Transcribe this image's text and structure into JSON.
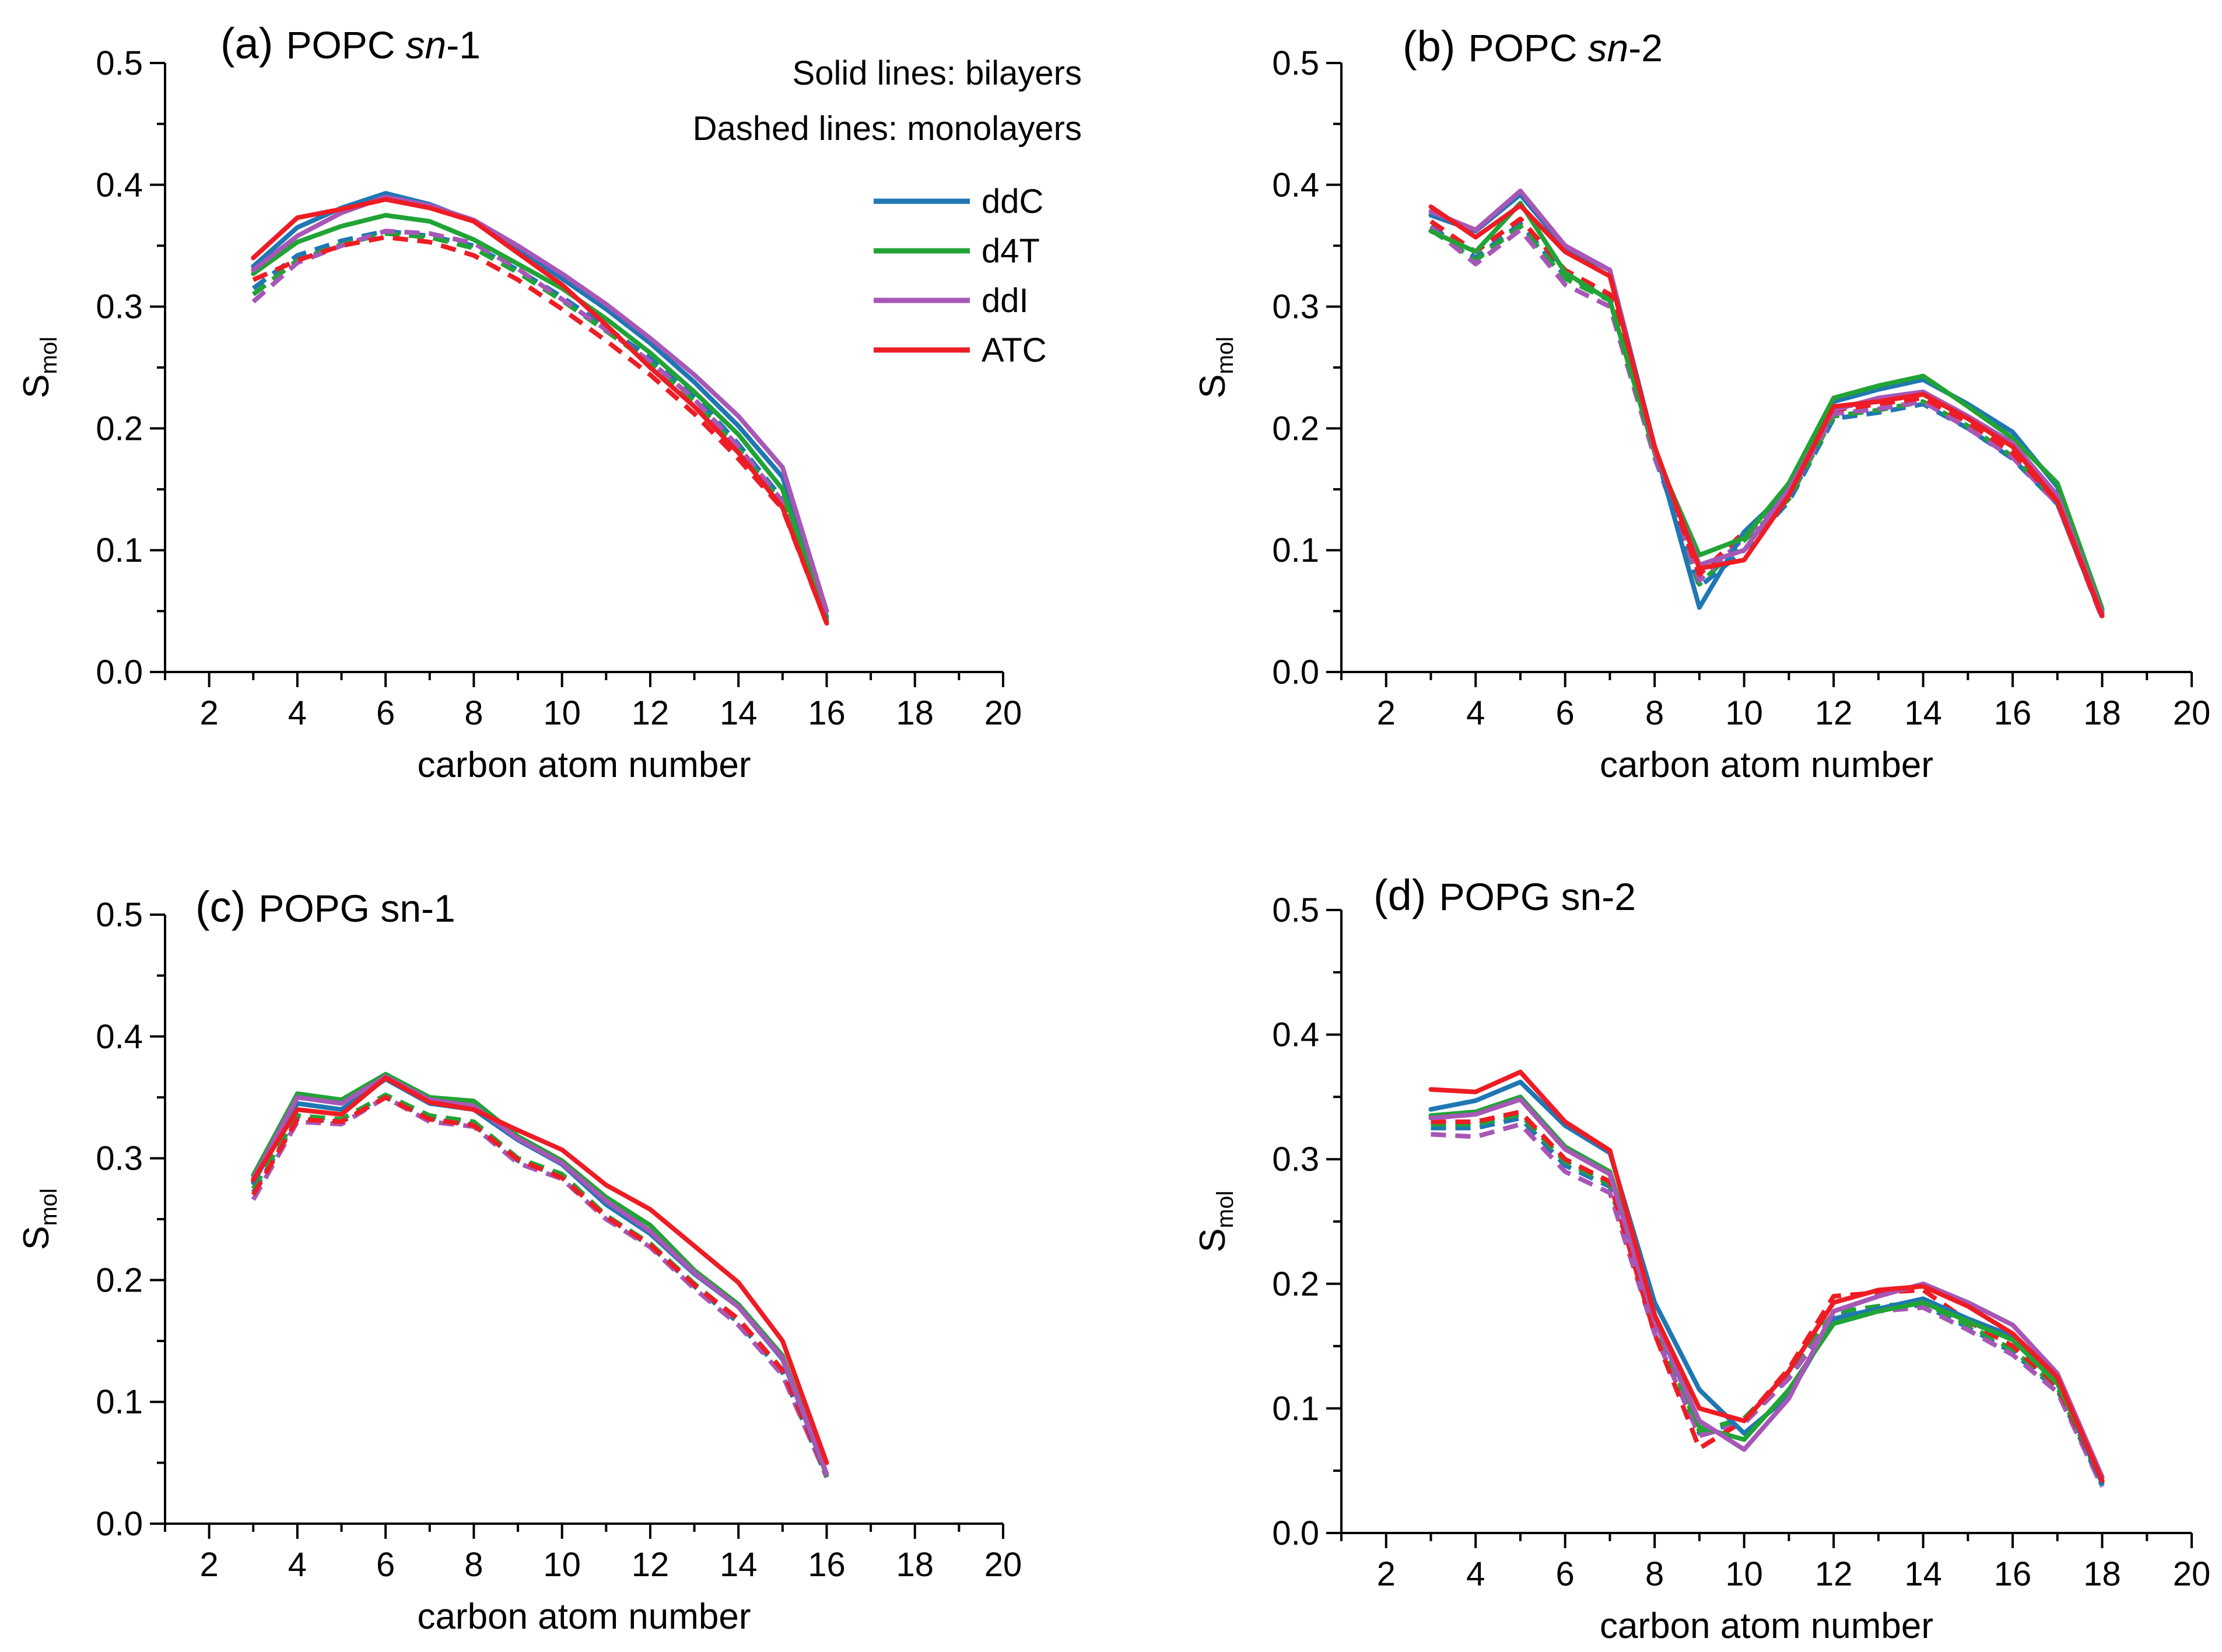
{
  "colors": {
    "ddC": "#1f77b4",
    "d4T": "#21a336",
    "ddI": "#a757b6",
    "ATC": "#ee1c24"
  },
  "legend": {
    "note_solid": "Solid lines: bilayers",
    "note_dashed": "Dashed lines: monolayers",
    "items": [
      "ddC",
      "d4T",
      "ddI",
      "ATC"
    ]
  },
  "chart_data": [
    {
      "type": "line",
      "title_prefix": "(a)",
      "title_main": "POPC",
      "title_italic": "sn",
      "title_suffix": "-1",
      "xlabel": "carbon atom number",
      "ylabel_main": "S",
      "ylabel_sub": "mol",
      "xlim": [
        1,
        20
      ],
      "ylim": [
        0,
        0.5
      ],
      "xticks": [
        "2",
        "4",
        "6",
        "8",
        "10",
        "12",
        "14",
        "16",
        "18",
        "20"
      ],
      "yticks": [
        "0.0",
        "0.1",
        "0.2",
        "0.3",
        "0.4",
        "0.5"
      ],
      "x": [
        3,
        4,
        5,
        6,
        7,
        8,
        9,
        10,
        11,
        12,
        13,
        14,
        15,
        16
      ],
      "series": [
        {
          "name": "ddC",
          "style": "solid",
          "values": [
            0.333,
            0.365,
            0.381,
            0.393,
            0.384,
            0.37,
            0.348,
            0.323,
            0.298,
            0.27,
            0.238,
            0.202,
            0.16,
            0.045
          ]
        },
        {
          "name": "d4T",
          "style": "solid",
          "values": [
            0.327,
            0.353,
            0.366,
            0.375,
            0.37,
            0.355,
            0.335,
            0.315,
            0.29,
            0.262,
            0.23,
            0.195,
            0.15,
            0.042
          ]
        },
        {
          "name": "ddI",
          "style": "solid",
          "values": [
            0.33,
            0.358,
            0.377,
            0.39,
            0.383,
            0.371,
            0.35,
            0.327,
            0.302,
            0.274,
            0.244,
            0.21,
            0.168,
            0.05
          ]
        },
        {
          "name": "ATC",
          "style": "solid",
          "values": [
            0.34,
            0.373,
            0.38,
            0.388,
            0.381,
            0.37,
            0.344,
            0.318,
            0.285,
            0.25,
            0.218,
            0.18,
            0.135,
            0.04
          ]
        },
        {
          "name": "ddC",
          "style": "dashed",
          "values": [
            0.315,
            0.342,
            0.354,
            0.362,
            0.358,
            0.35,
            0.33,
            0.308,
            0.283,
            0.258,
            0.227,
            0.187,
            0.142,
            0.04
          ]
        },
        {
          "name": "d4T",
          "style": "dashed",
          "values": [
            0.31,
            0.338,
            0.351,
            0.36,
            0.357,
            0.348,
            0.328,
            0.305,
            0.28,
            0.254,
            0.222,
            0.183,
            0.138,
            0.04
          ]
        },
        {
          "name": "ddI",
          "style": "dashed",
          "values": [
            0.304,
            0.336,
            0.35,
            0.362,
            0.36,
            0.352,
            0.331,
            0.306,
            0.281,
            0.255,
            0.224,
            0.185,
            0.14,
            0.042
          ]
        },
        {
          "name": "ATC",
          "style": "dashed",
          "values": [
            0.322,
            0.338,
            0.35,
            0.357,
            0.353,
            0.342,
            0.322,
            0.298,
            0.272,
            0.244,
            0.212,
            0.175,
            0.134,
            0.04
          ]
        }
      ]
    },
    {
      "type": "line",
      "title_prefix": "(b)",
      "title_main": "POPC",
      "title_italic": "sn",
      "title_suffix": "-2",
      "xlabel": "carbon atom number",
      "ylabel_main": "S",
      "ylabel_sub": "mol",
      "xlim": [
        1,
        20
      ],
      "ylim": [
        0,
        0.5
      ],
      "xticks": [
        "2",
        "4",
        "6",
        "8",
        "10",
        "12",
        "14",
        "16",
        "18",
        "20"
      ],
      "yticks": [
        "0.0",
        "0.1",
        "0.2",
        "0.3",
        "0.4",
        "0.5"
      ],
      "x": [
        3,
        4,
        5,
        6,
        7,
        8,
        9,
        10,
        11,
        12,
        13,
        14,
        15,
        16,
        17,
        18
      ],
      "series": [
        {
          "name": "ddC",
          "style": "solid",
          "values": [
            0.375,
            0.362,
            0.392,
            0.348,
            0.33,
            0.185,
            0.053,
            0.115,
            0.15,
            0.222,
            0.232,
            0.24,
            0.22,
            0.197,
            0.152,
            0.05
          ]
        },
        {
          "name": "d4T",
          "style": "solid",
          "values": [
            0.362,
            0.345,
            0.385,
            0.328,
            0.305,
            0.18,
            0.096,
            0.11,
            0.155,
            0.225,
            0.235,
            0.243,
            0.218,
            0.192,
            0.155,
            0.052
          ]
        },
        {
          "name": "ddI",
          "style": "solid",
          "values": [
            0.378,
            0.363,
            0.395,
            0.35,
            0.33,
            0.182,
            0.088,
            0.1,
            0.15,
            0.215,
            0.225,
            0.23,
            0.21,
            0.188,
            0.145,
            0.048
          ]
        },
        {
          "name": "ATC",
          "style": "solid",
          "values": [
            0.382,
            0.357,
            0.383,
            0.345,
            0.325,
            0.185,
            0.085,
            0.092,
            0.145,
            0.218,
            0.222,
            0.228,
            0.208,
            0.185,
            0.14,
            0.046
          ]
        },
        {
          "name": "ddC",
          "style": "dashed",
          "values": [
            0.366,
            0.34,
            0.368,
            0.325,
            0.308,
            0.18,
            0.07,
            0.1,
            0.14,
            0.208,
            0.213,
            0.22,
            0.2,
            0.175,
            0.138,
            0.045
          ]
        },
        {
          "name": "d4T",
          "style": "dashed",
          "values": [
            0.363,
            0.338,
            0.366,
            0.323,
            0.305,
            0.178,
            0.072,
            0.108,
            0.142,
            0.21,
            0.215,
            0.222,
            0.202,
            0.177,
            0.14,
            0.046
          ]
        },
        {
          "name": "ddI",
          "style": "dashed",
          "values": [
            0.365,
            0.335,
            0.363,
            0.318,
            0.3,
            0.176,
            0.075,
            0.11,
            0.145,
            0.212,
            0.216,
            0.222,
            0.2,
            0.176,
            0.138,
            0.044
          ]
        },
        {
          "name": "ATC",
          "style": "dashed",
          "values": [
            0.37,
            0.345,
            0.372,
            0.33,
            0.31,
            0.182,
            0.08,
            0.115,
            0.15,
            0.215,
            0.22,
            0.225,
            0.205,
            0.18,
            0.14,
            0.045
          ]
        }
      ]
    },
    {
      "type": "line",
      "title_prefix": "(c)",
      "title_main": "POPG sn-1",
      "title_italic": "",
      "title_suffix": "",
      "xlabel": "carbon atom number",
      "ylabel_main": "S",
      "ylabel_sub": "mol",
      "xlim": [
        1,
        20
      ],
      "ylim": [
        0,
        0.5
      ],
      "xticks": [
        "2",
        "4",
        "6",
        "8",
        "10",
        "12",
        "14",
        "16",
        "18",
        "20"
      ],
      "yticks": [
        "0.0",
        "0.1",
        "0.2",
        "0.3",
        "0.4",
        "0.5"
      ],
      "x": [
        3,
        4,
        5,
        6,
        7,
        8,
        9,
        10,
        11,
        12,
        13,
        14,
        15,
        16
      ],
      "series": [
        {
          "name": "ddC",
          "style": "solid",
          "values": [
            0.28,
            0.345,
            0.34,
            0.365,
            0.345,
            0.34,
            0.315,
            0.295,
            0.262,
            0.238,
            0.205,
            0.178,
            0.135,
            0.04
          ]
        },
        {
          "name": "d4T",
          "style": "solid",
          "values": [
            0.286,
            0.353,
            0.348,
            0.369,
            0.35,
            0.347,
            0.318,
            0.298,
            0.268,
            0.245,
            0.208,
            0.18,
            0.138,
            0.04
          ]
        },
        {
          "name": "ddI",
          "style": "solid",
          "values": [
            0.283,
            0.35,
            0.345,
            0.367,
            0.348,
            0.343,
            0.316,
            0.296,
            0.265,
            0.24,
            0.206,
            0.178,
            0.136,
            0.041
          ]
        },
        {
          "name": "ATC",
          "style": "solid",
          "values": [
            0.282,
            0.34,
            0.336,
            0.366,
            0.346,
            0.34,
            0.323,
            0.307,
            0.278,
            0.258,
            0.228,
            0.198,
            0.15,
            0.05
          ]
        },
        {
          "name": "ddC",
          "style": "dashed",
          "values": [
            0.272,
            0.333,
            0.33,
            0.35,
            0.333,
            0.328,
            0.298,
            0.285,
            0.252,
            0.228,
            0.195,
            0.165,
            0.124,
            0.038
          ]
        },
        {
          "name": "d4T",
          "style": "dashed",
          "values": [
            0.275,
            0.335,
            0.332,
            0.352,
            0.335,
            0.33,
            0.3,
            0.287,
            0.253,
            0.23,
            0.197,
            0.167,
            0.126,
            0.039
          ]
        },
        {
          "name": "ddI",
          "style": "dashed",
          "values": [
            0.266,
            0.33,
            0.328,
            0.35,
            0.33,
            0.326,
            0.296,
            0.283,
            0.25,
            0.227,
            0.193,
            0.163,
            0.122,
            0.038
          ]
        },
        {
          "name": "ATC",
          "style": "dashed",
          "values": [
            0.27,
            0.332,
            0.33,
            0.35,
            0.332,
            0.327,
            0.299,
            0.284,
            0.252,
            0.229,
            0.196,
            0.168,
            0.126,
            0.04
          ]
        }
      ]
    },
    {
      "type": "line",
      "title_prefix": "(d)",
      "title_main": "POPG sn-2",
      "title_italic": "",
      "title_suffix": "",
      "xlabel": "carbon atom number",
      "ylabel_main": "S",
      "ylabel_sub": "mol",
      "xlim": [
        1,
        20
      ],
      "ylim": [
        0,
        0.5
      ],
      "xticks": [
        "2",
        "4",
        "6",
        "8",
        "10",
        "12",
        "14",
        "16",
        "18",
        "20"
      ],
      "yticks": [
        "0.0",
        "0.1",
        "0.2",
        "0.3",
        "0.4",
        "0.5"
      ],
      "x": [
        3,
        4,
        5,
        6,
        7,
        8,
        9,
        10,
        11,
        12,
        13,
        14,
        15,
        16,
        17,
        18
      ],
      "series": [
        {
          "name": "ddC",
          "style": "solid",
          "values": [
            0.34,
            0.347,
            0.362,
            0.327,
            0.305,
            0.185,
            0.115,
            0.08,
            0.11,
            0.172,
            0.18,
            0.188,
            0.172,
            0.158,
            0.122,
            0.04
          ]
        },
        {
          "name": "d4T",
          "style": "solid",
          "values": [
            0.335,
            0.338,
            0.35,
            0.31,
            0.29,
            0.175,
            0.085,
            0.075,
            0.115,
            0.168,
            0.178,
            0.185,
            0.17,
            0.155,
            0.12,
            0.045
          ]
        },
        {
          "name": "ddI",
          "style": "solid",
          "values": [
            0.333,
            0.336,
            0.348,
            0.308,
            0.288,
            0.17,
            0.09,
            0.067,
            0.108,
            0.178,
            0.19,
            0.2,
            0.185,
            0.167,
            0.128,
            0.045
          ]
        },
        {
          "name": "ATC",
          "style": "solid",
          "values": [
            0.356,
            0.354,
            0.37,
            0.33,
            0.307,
            0.175,
            0.1,
            0.09,
            0.13,
            0.185,
            0.195,
            0.198,
            0.182,
            0.16,
            0.125,
            0.042
          ]
        },
        {
          "name": "ddC",
          "style": "dashed",
          "values": [
            0.325,
            0.325,
            0.333,
            0.295,
            0.278,
            0.165,
            0.08,
            0.09,
            0.125,
            0.175,
            0.18,
            0.183,
            0.165,
            0.145,
            0.115,
            0.038
          ]
        },
        {
          "name": "d4T",
          "style": "dashed",
          "values": [
            0.328,
            0.328,
            0.336,
            0.298,
            0.28,
            0.168,
            0.082,
            0.092,
            0.128,
            0.177,
            0.182,
            0.185,
            0.167,
            0.147,
            0.117,
            0.04
          ]
        },
        {
          "name": "ddI",
          "style": "dashed",
          "values": [
            0.32,
            0.318,
            0.328,
            0.29,
            0.273,
            0.16,
            0.078,
            0.088,
            0.124,
            0.173,
            0.178,
            0.181,
            0.163,
            0.143,
            0.113,
            0.037
          ]
        },
        {
          "name": "ATC",
          "style": "dashed",
          "values": [
            0.33,
            0.33,
            0.338,
            0.3,
            0.282,
            0.16,
            0.068,
            0.09,
            0.132,
            0.19,
            0.193,
            0.195,
            0.17,
            0.15,
            0.118,
            0.04
          ]
        }
      ]
    }
  ]
}
